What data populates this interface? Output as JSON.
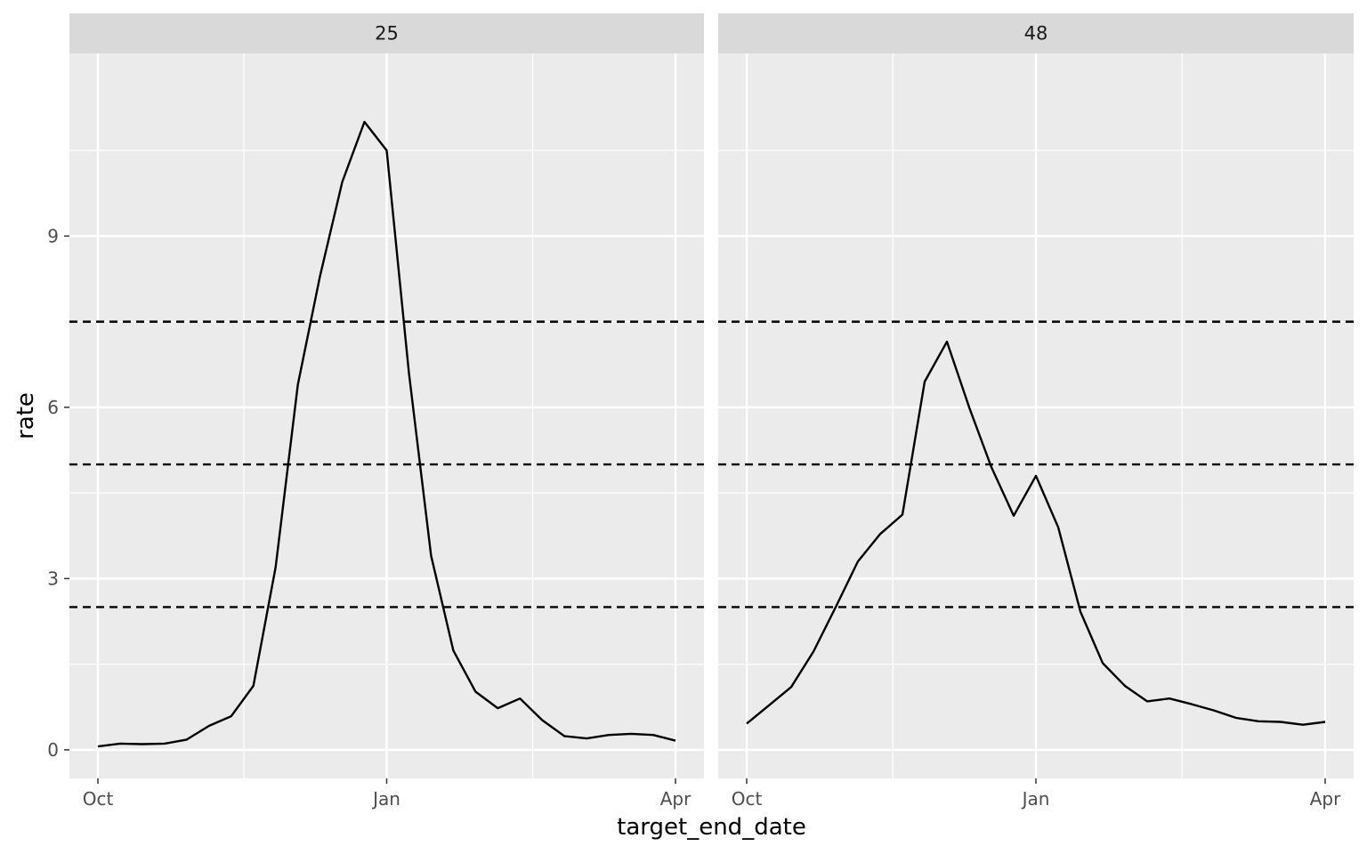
{
  "chart_data": {
    "type": "line",
    "facet_by": "location",
    "facets": [
      {
        "label": "25",
        "series": [
          {
            "x": [
              "2023-10-07",
              "2023-10-14",
              "2023-10-21",
              "2023-10-28",
              "2023-11-04",
              "2023-11-11",
              "2023-11-18",
              "2023-11-25",
              "2023-12-02",
              "2023-12-09",
              "2023-12-16",
              "2023-12-23",
              "2023-12-30",
              "2024-01-06",
              "2024-01-13",
              "2024-01-20",
              "2024-01-27",
              "2024-02-03",
              "2024-02-10",
              "2024-02-17",
              "2024-02-24",
              "2024-03-02",
              "2024-03-09",
              "2024-03-16",
              "2024-03-23",
              "2024-03-30",
              "2024-04-06"
            ],
            "y": [
              0.06,
              0.11,
              0.1,
              0.11,
              0.18,
              0.42,
              0.59,
              1.12,
              3.2,
              6.4,
              8.3,
              9.95,
              11.0,
              10.5,
              6.6,
              3.4,
              1.74,
              1.02,
              0.73,
              0.9,
              0.52,
              0.24,
              0.2,
              0.26,
              0.28,
              0.26,
              0.16
            ]
          }
        ]
      },
      {
        "label": "48",
        "series": [
          {
            "x": [
              "2023-10-07",
              "2023-10-14",
              "2023-10-21",
              "2023-10-28",
              "2023-11-04",
              "2023-11-11",
              "2023-11-18",
              "2023-11-25",
              "2023-12-02",
              "2023-12-09",
              "2023-12-16",
              "2023-12-23",
              "2023-12-30",
              "2024-01-06",
              "2024-01-13",
              "2024-01-20",
              "2024-01-27",
              "2024-02-03",
              "2024-02-10",
              "2024-02-17",
              "2024-02-24",
              "2024-03-02",
              "2024-03-09",
              "2024-03-16",
              "2024-03-23",
              "2024-03-30",
              "2024-04-06"
            ],
            "y": [
              0.46,
              0.78,
              1.1,
              1.72,
              2.5,
              3.3,
              3.78,
              4.12,
              6.45,
              7.15,
              6.0,
              4.95,
              4.1,
              4.8,
              3.9,
              2.42,
              1.52,
              1.12,
              0.85,
              0.9,
              0.8,
              0.69,
              0.56,
              0.5,
              0.49,
              0.44,
              0.49
            ]
          }
        ]
      }
    ],
    "xlabel": "target_end_date",
    "ylabel": "rate",
    "xlim": [
      "2023-10-07",
      "2024-04-06"
    ],
    "ylim": [
      -0.5,
      12.2
    ],
    "x_ticks": [
      {
        "label": "Oct",
        "date": "2023-10-07"
      },
      {
        "label": "Jan",
        "date": "2024-01-06"
      },
      {
        "label": "Apr",
        "date": "2024-04-06"
      }
    ],
    "x_minor_ticks": [
      "2023-11-22",
      "2024-02-21"
    ],
    "y_ticks": [
      0,
      3,
      6,
      9
    ],
    "y_minor_ticks": [
      1.5,
      4.5,
      7.5,
      10.5
    ],
    "reference_lines": [
      2.5,
      5,
      7.5
    ],
    "reference_line_style": "dashed",
    "grid": true,
    "legend": "none",
    "colors": {
      "panel_background": "#ebebeb",
      "strip_background": "#d9d9d9",
      "grid": "#ffffff",
      "line": "#000000",
      "reference_line": "#000000"
    }
  }
}
